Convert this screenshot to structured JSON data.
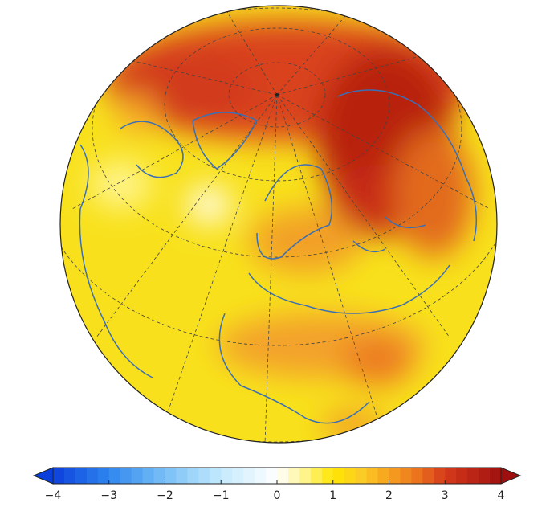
{
  "colorbar": {
    "lim": [
      -4,
      4
    ],
    "ticks": [
      {
        "value": -4,
        "label": "−4"
      },
      {
        "value": -3,
        "label": "−3"
      },
      {
        "value": -2,
        "label": "−2"
      },
      {
        "value": -1,
        "label": "−1"
      },
      0,
      1,
      2,
      3,
      4
    ],
    "colormap": [
      {
        "value": -4,
        "color": "#0b3fdc"
      },
      {
        "value": -3,
        "color": "#2f86ee"
      },
      {
        "value": -2,
        "color": "#78c0f6"
      },
      {
        "value": -1,
        "color": "#c4eafc"
      },
      {
        "value": 0,
        "color": "#ffffff"
      },
      {
        "value": 0.5,
        "color": "#fff48a"
      },
      {
        "value": 1,
        "color": "#ffe600"
      },
      {
        "value": 1.5,
        "color": "#fccc26"
      },
      {
        "value": 2,
        "color": "#f6a11f"
      },
      {
        "value": 2.5,
        "color": "#ec741d"
      },
      {
        "value": 3,
        "color": "#d63a1a"
      },
      {
        "value": 4,
        "color": "#9e1010"
      }
    ]
  }
}
